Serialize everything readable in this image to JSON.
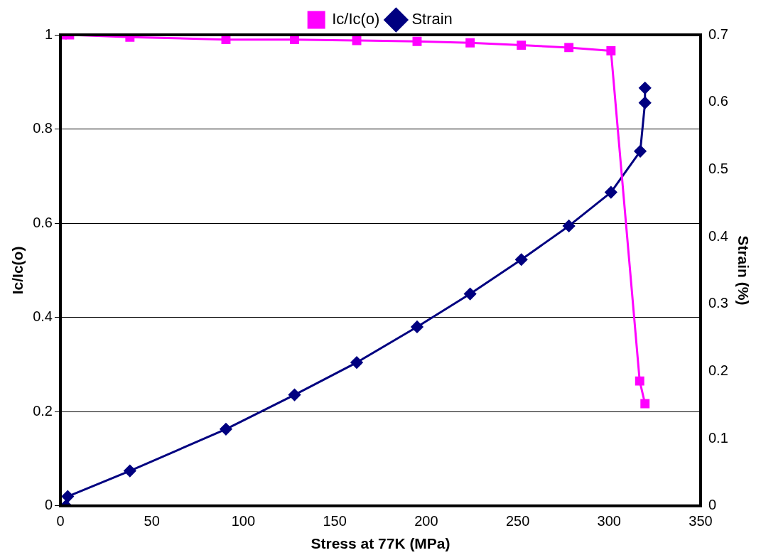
{
  "chart_data": {
    "type": "line",
    "xlabel": "Stress at 77K (MPa)",
    "ylabel": "Ic/Ic(o)",
    "y2label": "Strain (%)",
    "xlim": [
      0,
      350
    ],
    "xticks": [
      0,
      50,
      100,
      150,
      200,
      250,
      300,
      350
    ],
    "ylim": [
      0,
      1
    ],
    "yticks": [
      0,
      0.2,
      0.4,
      0.6,
      0.8,
      1
    ],
    "y2lim": [
      0,
      0.7
    ],
    "y2ticks": [
      0,
      0.1,
      0.2,
      0.3,
      0.4,
      0.5,
      0.6,
      0.7
    ],
    "grid": "y",
    "legend": "top",
    "line_style": "solid",
    "series": [
      {
        "name": "Ic/Ic(o)",
        "color": "#ff00ff",
        "marker": "square",
        "x": [
          1,
          5,
          38,
          90.5,
          128,
          162,
          195,
          224,
          252,
          278,
          301,
          316.7,
          319.6
        ],
        "values": [
          1,
          1,
          0.995,
          0.99,
          0.99,
          0.988,
          0.986,
          0.983,
          0.978,
          0.973,
          0.966,
          0.265,
          0.217
        ]
      },
      {
        "name": "Strain",
        "color": "#000080",
        "marker": "diamond",
        "axis": "y2",
        "x": [
          3,
          4,
          38,
          90.5,
          128,
          162,
          195,
          224,
          252,
          278,
          301,
          317,
          319.6,
          319.6
        ],
        "values": [
          0,
          0.014,
          0.052,
          0.114,
          0.165,
          0.213,
          0.266,
          0.315,
          0.366,
          0.416,
          0.466,
          0.527,
          0.599,
          0.621
        ]
      }
    ]
  }
}
